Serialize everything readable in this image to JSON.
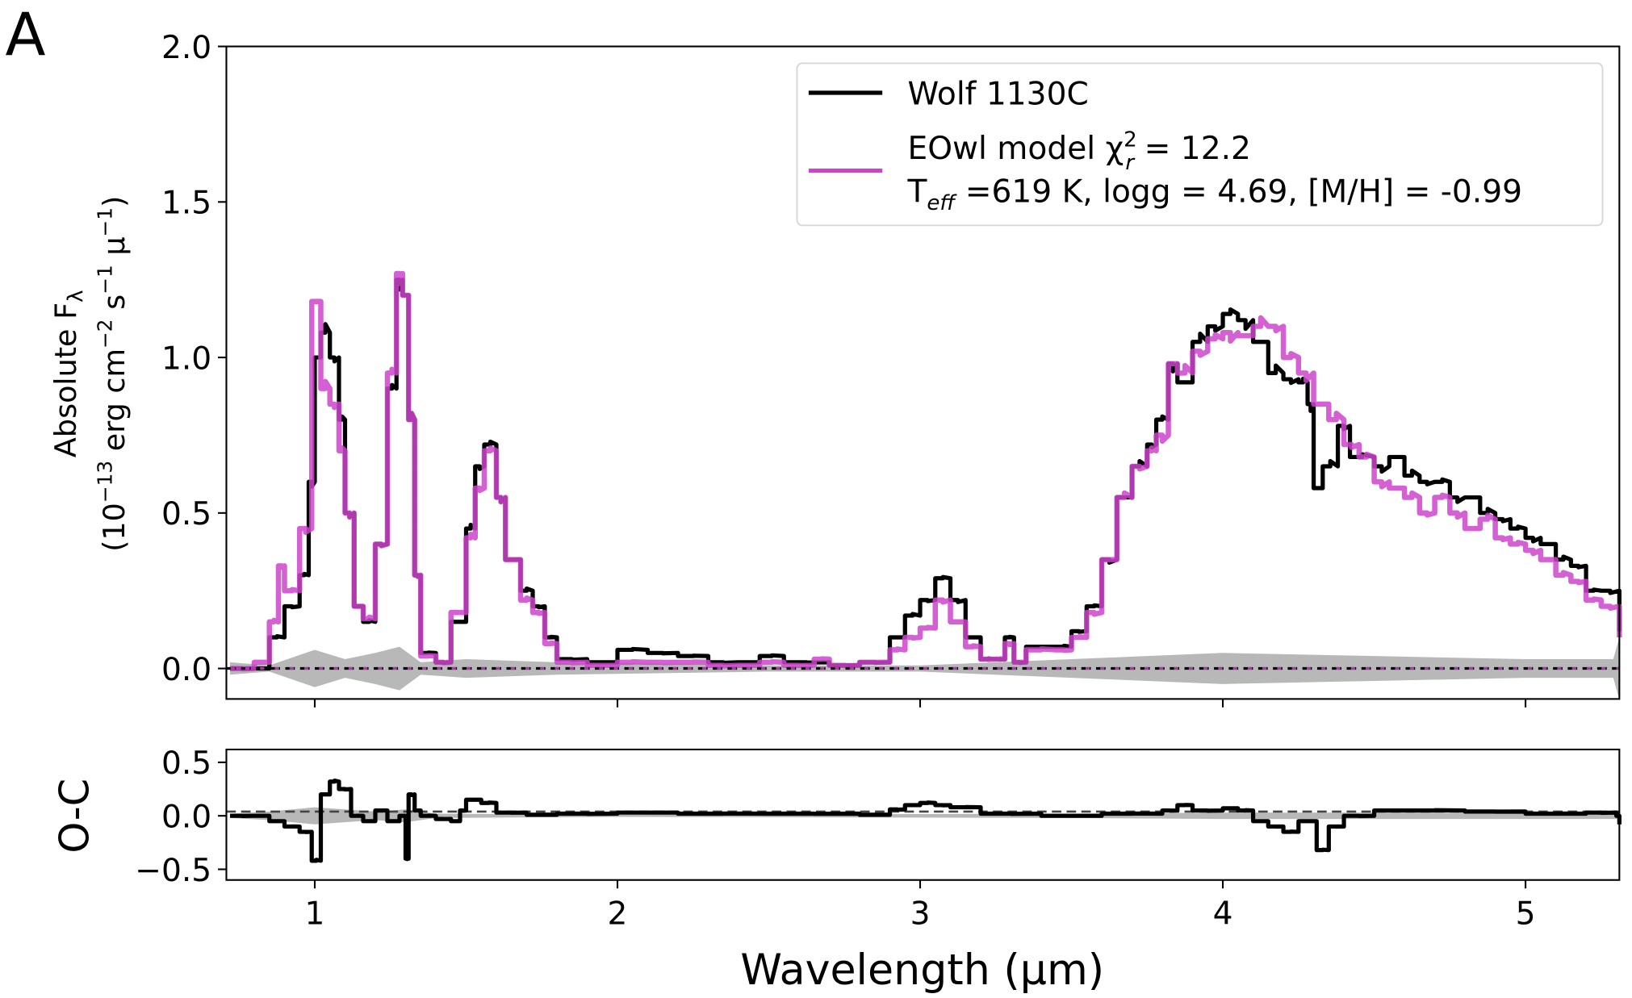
{
  "panel_label": "A",
  "colors": {
    "observed": "#000000",
    "model": "#cc44cc",
    "uncertainty": "#b0b0b0"
  },
  "chart_data": [
    {
      "type": "line",
      "title": "",
      "xlabel": "",
      "ylabel_line1_main": "Absolute F",
      "ylabel_line1_sub": "λ",
      "ylabel_line2": [
        "(10",
        "−13",
        " erg cm",
        "−2",
        " s",
        "−1",
        " μ",
        "−1",
        ")"
      ],
      "xlim": [
        0.708,
        5.31
      ],
      "ylim": [
        -0.098,
        2.0
      ],
      "xticks": [
        1,
        2,
        3,
        4,
        5
      ],
      "yticks": [
        0.0,
        0.5,
        1.0,
        1.5,
        2.0
      ],
      "ytick_labels": [
        "0.0",
        "0.5",
        "1.0",
        "1.5",
        "2.0"
      ],
      "grid": false,
      "legend": {
        "placement": "top-right",
        "entries": [
          {
            "label": "Wolf 1130C"
          },
          {
            "label_line1": "EOwl model χ",
            "sup": "2",
            "sub": "r",
            "label_line1_end": " = 12.2",
            "label_line2_pre": "T",
            "label_line2_sub": "eff",
            "label_line2_end": " =619 K, logg = 4.69, [M/H] = -0.99"
          }
        ]
      },
      "series": [
        {
          "name": "Wolf 1130C",
          "x": [
            0.72,
            0.8,
            0.85,
            0.9,
            0.95,
            0.98,
            1.0,
            1.02,
            1.05,
            1.08,
            1.1,
            1.13,
            1.16,
            1.2,
            1.24,
            1.27,
            1.29,
            1.31,
            1.33,
            1.35,
            1.4,
            1.45,
            1.5,
            1.53,
            1.56,
            1.6,
            1.63,
            1.68,
            1.72,
            1.76,
            1.8,
            1.9,
            2.0,
            2.1,
            2.2,
            2.3,
            2.4,
            2.47,
            2.55,
            2.7,
            2.8,
            2.9,
            2.95,
            3.0,
            3.05,
            3.1,
            3.15,
            3.2,
            3.25,
            3.28,
            3.31,
            3.35,
            3.45,
            3.5,
            3.55,
            3.6,
            3.65,
            3.7,
            3.75,
            3.78,
            3.82,
            3.85,
            3.9,
            3.95,
            4.0,
            4.05,
            4.1,
            4.15,
            4.2,
            4.25,
            4.28,
            4.3,
            4.33,
            4.38,
            4.42,
            4.5,
            4.55,
            4.6,
            4.65,
            4.7,
            4.75,
            4.8,
            4.85,
            4.9,
            4.95,
            5.0,
            5.05,
            5.1,
            5.15,
            5.2,
            5.25,
            5.31
          ],
          "y": [
            0,
            0,
            0.1,
            0.2,
            0.3,
            0.6,
            1.0,
            1.08,
            1.0,
            0.8,
            0.5,
            0.2,
            0.15,
            0.4,
            0.9,
            1.25,
            1.2,
            0.8,
            0.3,
            0.05,
            0.02,
            0.15,
            0.45,
            0.65,
            0.72,
            0.55,
            0.35,
            0.25,
            0.2,
            0.1,
            0.03,
            0.02,
            0.06,
            0.05,
            0.04,
            0.02,
            0.02,
            0.04,
            0.02,
            0.01,
            0.02,
            0.1,
            0.17,
            0.22,
            0.29,
            0.22,
            0.1,
            0.03,
            0.03,
            0.1,
            0.02,
            0.07,
            0.07,
            0.12,
            0.2,
            0.35,
            0.55,
            0.65,
            0.72,
            0.8,
            0.98,
            0.92,
            1.05,
            1.1,
            1.14,
            1.12,
            1.05,
            0.95,
            0.93,
            0.92,
            0.85,
            0.58,
            0.65,
            0.78,
            0.68,
            0.65,
            0.68,
            0.62,
            0.6,
            0.6,
            0.55,
            0.55,
            0.5,
            0.48,
            0.45,
            0.42,
            0.4,
            0.35,
            0.33,
            0.25,
            0.25,
            0.12
          ]
        },
        {
          "name": "EOwl model",
          "x": [
            0.72,
            0.8,
            0.85,
            0.88,
            0.9,
            0.95,
            0.99,
            1.02,
            1.05,
            1.08,
            1.1,
            1.13,
            1.16,
            1.2,
            1.24,
            1.27,
            1.29,
            1.31,
            1.33,
            1.35,
            1.4,
            1.45,
            1.5,
            1.53,
            1.56,
            1.6,
            1.63,
            1.68,
            1.72,
            1.76,
            1.8,
            1.9,
            2.0,
            2.1,
            2.2,
            2.3,
            2.4,
            2.47,
            2.55,
            2.65,
            2.7,
            2.8,
            2.9,
            2.95,
            3.0,
            3.05,
            3.1,
            3.15,
            3.2,
            3.25,
            3.28,
            3.31,
            3.35,
            3.45,
            3.5,
            3.55,
            3.6,
            3.65,
            3.7,
            3.75,
            3.78,
            3.82,
            3.85,
            3.9,
            3.95,
            4.0,
            4.05,
            4.1,
            4.15,
            4.2,
            4.25,
            4.3,
            4.35,
            4.4,
            4.45,
            4.5,
            4.55,
            4.6,
            4.65,
            4.7,
            4.75,
            4.8,
            4.85,
            4.9,
            4.95,
            5.0,
            5.05,
            5.1,
            5.15,
            5.2,
            5.25,
            5.31
          ],
          "y": [
            0,
            0.02,
            0.15,
            0.33,
            0.25,
            0.45,
            1.18,
            0.9,
            0.85,
            0.7,
            0.5,
            0.2,
            0.16,
            0.4,
            0.95,
            1.27,
            1.2,
            0.8,
            0.3,
            0.04,
            0.02,
            0.18,
            0.42,
            0.58,
            0.7,
            0.55,
            0.35,
            0.22,
            0.18,
            0.08,
            0.02,
            0.01,
            0.02,
            0.02,
            0.02,
            0.01,
            0.01,
            0.02,
            0.01,
            0.03,
            0.01,
            0.02,
            0.06,
            0.1,
            0.13,
            0.22,
            0.15,
            0.07,
            0.03,
            0.03,
            0.08,
            0.02,
            0.06,
            0.06,
            0.1,
            0.18,
            0.35,
            0.55,
            0.65,
            0.7,
            0.75,
            0.98,
            0.95,
            1.02,
            1.06,
            1.08,
            1.07,
            1.1,
            1.1,
            1.0,
            0.95,
            0.85,
            0.8,
            0.72,
            0.68,
            0.6,
            0.58,
            0.55,
            0.5,
            0.55,
            0.5,
            0.45,
            0.48,
            0.42,
            0.4,
            0.38,
            0.35,
            0.3,
            0.28,
            0.22,
            0.2,
            0.1
          ]
        },
        {
          "name": "uncertainty",
          "x": [
            0.72,
            0.85,
            1.0,
            1.1,
            1.2,
            1.28,
            1.35,
            1.5,
            1.8,
            2.5,
            3.0,
            3.5,
            4.0,
            4.5,
            5.0,
            5.29,
            5.31
          ],
          "y": [
            0.02,
            0.01,
            0.06,
            0.03,
            0.05,
            0.07,
            0.02,
            0.03,
            0.02,
            0.01,
            0.01,
            0.03,
            0.05,
            0.04,
            0.03,
            0.03,
            0.1
          ]
        }
      ]
    },
    {
      "type": "line",
      "xlabel": "Wavelength (μm)",
      "ylabel": "O-C",
      "xlim": [
        0.708,
        5.31
      ],
      "ylim": [
        -0.6,
        0.62
      ],
      "xticks": [
        1,
        2,
        3,
        4,
        5
      ],
      "xtick_labels": [
        "1",
        "2",
        "3",
        "4",
        "5"
      ],
      "yticks": [
        -0.5,
        0.0,
        0.5
      ],
      "ytick_labels": [
        "−0.5",
        "0.0",
        "0.5"
      ],
      "series": [
        {
          "name": "O-C",
          "x": [
            0.72,
            0.8,
            0.85,
            0.9,
            0.95,
            0.99,
            1.02,
            1.05,
            1.08,
            1.12,
            1.16,
            1.2,
            1.24,
            1.28,
            1.3,
            1.31,
            1.33,
            1.35,
            1.4,
            1.45,
            1.48,
            1.5,
            1.55,
            1.6,
            1.7,
            1.8,
            2.0,
            2.2,
            2.5,
            2.8,
            2.9,
            2.95,
            3.0,
            3.05,
            3.1,
            3.2,
            3.4,
            3.6,
            3.8,
            3.85,
            3.9,
            4.0,
            4.05,
            4.1,
            4.15,
            4.2,
            4.25,
            4.28,
            4.31,
            4.35,
            4.4,
            4.5,
            4.6,
            4.8,
            5.0,
            5.2,
            5.3,
            5.31
          ],
          "y": [
            0,
            0,
            -0.05,
            -0.1,
            -0.15,
            -0.42,
            0.2,
            0.32,
            0.25,
            0.0,
            -0.05,
            0.05,
            -0.05,
            0.0,
            -0.4,
            0.2,
            0.05,
            0.0,
            -0.03,
            -0.05,
            0.05,
            0.15,
            0.12,
            0.03,
            0.01,
            0.02,
            0.03,
            0.02,
            0.02,
            0.01,
            0.06,
            0.1,
            0.12,
            0.1,
            0.08,
            0.02,
            0.0,
            0.02,
            0.05,
            0.1,
            0.05,
            0.07,
            0.05,
            -0.05,
            -0.1,
            -0.15,
            -0.05,
            -0.05,
            -0.32,
            -0.1,
            0.0,
            0.05,
            0.05,
            0.04,
            0.02,
            0.03,
            0.0,
            -0.08
          ]
        },
        {
          "name": "uncertainty",
          "x": [
            0.72,
            0.85,
            1.0,
            1.2,
            1.3,
            1.4,
            2.0,
            3.5,
            4.0,
            4.5,
            5.31
          ],
          "y": [
            0.02,
            0.04,
            0.08,
            0.04,
            0.06,
            0.02,
            0.01,
            0.02,
            0.03,
            0.03,
            0.03
          ]
        }
      ]
    }
  ]
}
